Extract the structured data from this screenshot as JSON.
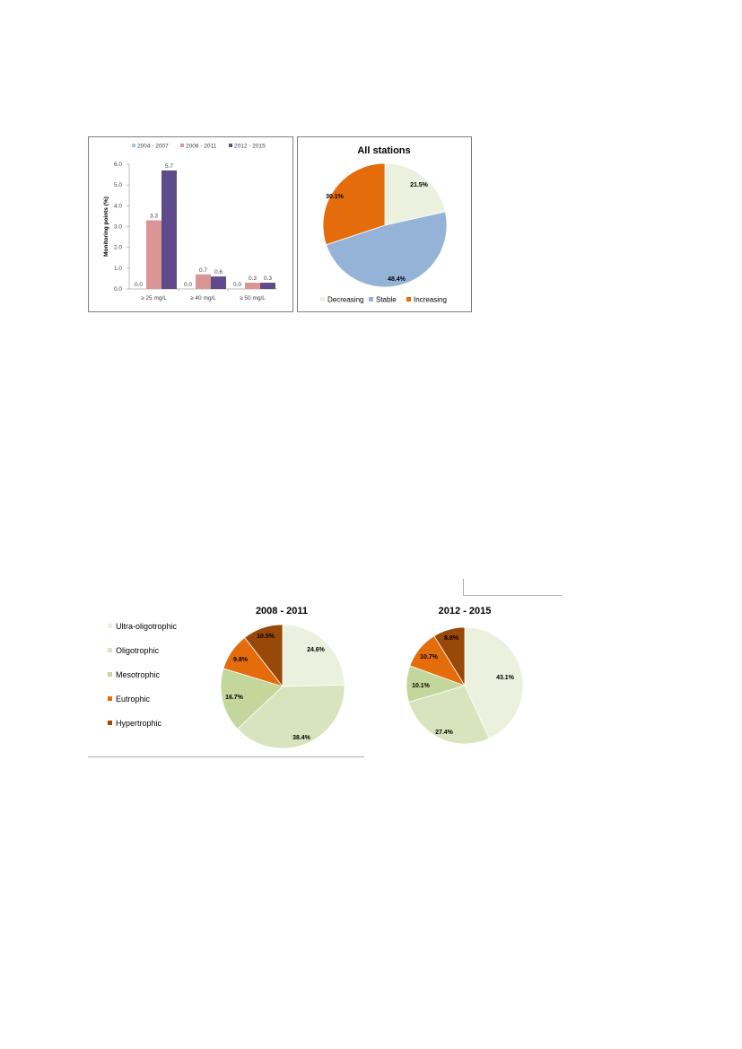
{
  "chart_data": [
    {
      "type": "bar",
      "title": "",
      "xlabel": "",
      "ylabel": "Monitoring points (%)",
      "ylim": [
        0,
        6
      ],
      "yticks": [
        "0.0",
        "1.0",
        "2.0",
        "3.0",
        "4.0",
        "5.0",
        "6.0"
      ],
      "categories": [
        "≥ 25 mg/L",
        "≥ 40 mg/L",
        "≥ 50 mg/L"
      ],
      "legend_position": "top",
      "series": [
        {
          "name": "2004 - 2007",
          "color": "#9dc3e6",
          "values": [
            0.0,
            0.0,
            0.0
          ],
          "labels": [
            "0.0",
            "0.0",
            "0.0"
          ]
        },
        {
          "name": "2008 - 2011",
          "color": "#d99694",
          "values": [
            3.3,
            0.7,
            0.3
          ],
          "labels": [
            "3.3",
            "0.7",
            "0.3"
          ]
        },
        {
          "name": "2012 - 2015",
          "color": "#5f4b8b",
          "values": [
            5.7,
            0.6,
            0.3
          ],
          "labels": [
            "5.7",
            "0.6",
            "0.3"
          ]
        }
      ]
    },
    {
      "type": "pie",
      "title": "All stations",
      "legend_position": "bottom",
      "slices": [
        {
          "name": "Decreasing",
          "value": 21.5,
          "label": "21.5%",
          "color": "#ebf1de"
        },
        {
          "name": "Stable",
          "value": 48.4,
          "label": "48.4%",
          "color": "#95b3d7"
        },
        {
          "name": "Increasing",
          "value": 30.1,
          "label": "30.1%",
          "color": "#e46c0a"
        }
      ]
    },
    {
      "type": "pie",
      "title": "2008 - 2011",
      "legend_position": "left",
      "slices": [
        {
          "name": "Ultra-oligotrophic",
          "value": 24.6,
          "label": "24.6%",
          "color": "#ebf1de"
        },
        {
          "name": "Oligotrophic",
          "value": 38.4,
          "label": "38.4%",
          "color": "#d7e4bd"
        },
        {
          "name": "Mesotrophic",
          "value": 16.7,
          "label": "16.7%",
          "color": "#c3d69b"
        },
        {
          "name": "Eutrophic",
          "value": 9.8,
          "label": "9.8%",
          "color": "#e46c0a"
        },
        {
          "name": "Hypertrophic",
          "value": 10.5,
          "label": "10.5%",
          "color": "#984807"
        }
      ]
    },
    {
      "type": "pie",
      "title": "2012 - 2015",
      "legend_position": "left",
      "slices": [
        {
          "name": "Ultra-oligotrophic",
          "value": 43.1,
          "label": "43.1%",
          "color": "#ebf1de"
        },
        {
          "name": "Oligotrophic",
          "value": 27.4,
          "label": "27.4%",
          "color": "#d7e4bd"
        },
        {
          "name": "Mesotrophic",
          "value": 10.1,
          "label": "10.1%",
          "color": "#c3d69b"
        },
        {
          "name": "Eutrophic",
          "value": 10.7,
          "label": "10.7%",
          "color": "#e46c0a"
        },
        {
          "name": "Hypertrophic",
          "value": 8.8,
          "label": "8.8%",
          "color": "#984807"
        }
      ]
    }
  ]
}
